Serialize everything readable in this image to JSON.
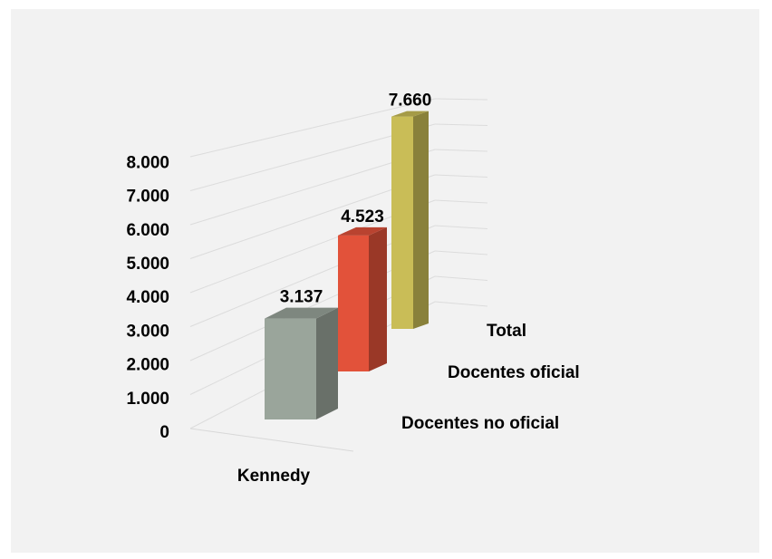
{
  "chart_data": {
    "type": "bar",
    "title": "",
    "xlabel": "",
    "ylabel": "",
    "categories": [
      "Kennedy"
    ],
    "series": [
      {
        "name": "Docentes no oficial",
        "values": [
          3137
        ],
        "label": "3.137",
        "color": "#9aa59b"
      },
      {
        "name": "Docentes oficial",
        "values": [
          4523
        ],
        "label": "4.523",
        "color": "#e2523a"
      },
      {
        "name": "Total",
        "values": [
          7660
        ],
        "label": "7.660",
        "color": "#c9bd57"
      }
    ],
    "ylim": [
      0,
      8000
    ],
    "y_ticks": [
      0,
      1000,
      2000,
      3000,
      4000,
      5000,
      6000,
      7000,
      8000
    ],
    "y_tick_labels": [
      "0",
      "1.000",
      "2.000",
      "3.000",
      "4.000",
      "5.000",
      "6.000",
      "7.000",
      "8.000"
    ],
    "grid": true,
    "style": "3d-column",
    "legend": "none (series names shown on depth axis)"
  }
}
